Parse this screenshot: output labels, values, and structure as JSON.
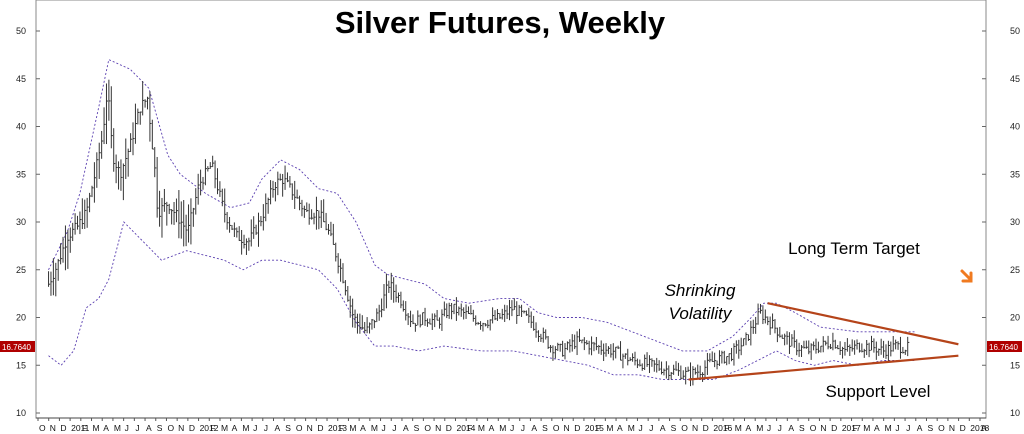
{
  "chart_data": {
    "type": "line",
    "title": "Silver Futures, Weekly",
    "ylim": [
      10,
      52
    ],
    "y_ticks": [
      10,
      15,
      20,
      25,
      30,
      35,
      40,
      45,
      50
    ],
    "last_price": "16.7640",
    "x_labels": [
      "O",
      "N",
      "D",
      "2011",
      "F",
      "M",
      "A",
      "M",
      "J",
      "J",
      "A",
      "S",
      "O",
      "N",
      "D",
      "2012",
      "F",
      "M",
      "A",
      "M",
      "J",
      "J",
      "A",
      "S",
      "O",
      "N",
      "D",
      "2013",
      "F",
      "M",
      "A",
      "M",
      "J",
      "J",
      "A",
      "S",
      "O",
      "N",
      "D",
      "2014",
      "F",
      "M",
      "A",
      "M",
      "J",
      "J",
      "A",
      "S",
      "O",
      "N",
      "D",
      "2015",
      "F",
      "M",
      "A",
      "M",
      "J",
      "J",
      "A",
      "S",
      "O",
      "N",
      "D",
      "2016",
      "F",
      "M",
      "A",
      "M",
      "J",
      "J",
      "A",
      "S",
      "O",
      "N",
      "D",
      "2017",
      "F",
      "M",
      "A",
      "M",
      "J",
      "J",
      "A",
      "S",
      "O",
      "N",
      "D",
      "2018",
      "A"
    ],
    "series": [
      {
        "name": "",
        "style": "price-bars",
        "x": [
          2010.85,
          2010.92,
          2011.0,
          2011.08,
          2011.15,
          2011.22,
          2011.28,
          2011.32,
          2011.36,
          2011.42,
          2011.5,
          2011.58,
          2011.64,
          2011.7,
          2011.72,
          2011.8,
          2011.88,
          2011.96,
          2012.05,
          2012.15,
          2012.25,
          2012.35,
          2012.45,
          2012.55,
          2012.65,
          2012.72,
          2012.8,
          2012.9,
          2013.0,
          2013.08,
          2013.18,
          2013.28,
          2013.38,
          2013.48,
          2013.56,
          2013.65,
          2013.75,
          2013.85,
          2013.95,
          2014.05,
          2014.15,
          2014.3,
          2014.45,
          2014.55,
          2014.7,
          2014.85,
          2014.95,
          2015.05,
          2015.2,
          2015.35,
          2015.5,
          2015.65,
          2015.8,
          2015.95,
          2016.05,
          2016.15,
          2016.28,
          2016.4,
          2016.52,
          2016.6,
          2016.7,
          2016.8,
          2016.9,
          2017.0,
          2017.1,
          2017.2,
          2017.3,
          2017.4,
          2017.5,
          2017.6,
          2017.7
        ],
        "y": [
          23.5,
          25.5,
          28.5,
          29.5,
          31,
          35,
          39,
          44,
          37,
          35,
          38,
          42,
          43,
          35,
          31,
          32,
          30.5,
          29,
          34,
          36,
          31,
          28.5,
          28,
          30.5,
          34,
          34.5,
          33,
          31,
          31,
          29,
          25,
          20,
          18.5,
          20.5,
          23.5,
          22,
          19.5,
          20,
          19.5,
          21,
          20.5,
          19.5,
          20,
          21,
          19.5,
          17,
          16.5,
          17.5,
          17,
          16.5,
          15.5,
          15,
          14.5,
          14,
          14.5,
          15.5,
          16,
          17.5,
          20.5,
          19.5,
          18,
          17,
          16.5,
          17,
          17.5,
          16.5,
          17,
          17,
          16.5,
          17,
          16.8
        ]
      },
      {
        "name": "",
        "style": "upper-band",
        "x": [
          2010.85,
          2011.0,
          2011.1,
          2011.25,
          2011.33,
          2011.5,
          2011.65,
          2011.8,
          2011.9,
          2012.1,
          2012.3,
          2012.45,
          2012.55,
          2012.7,
          2012.85,
          2013.0,
          2013.15,
          2013.3,
          2013.45,
          2013.55,
          2013.7,
          2013.85,
          2014.0,
          2014.2,
          2014.45,
          2014.6,
          2014.75,
          2014.9,
          2015.1,
          2015.3,
          2015.5,
          2015.7,
          2015.9,
          2016.1,
          2016.3,
          2016.45,
          2016.55,
          2016.65,
          2016.8,
          2017.0,
          2017.3,
          2017.6,
          2017.75
        ],
        "y": [
          25,
          29,
          33,
          42,
          47,
          46,
          44,
          37,
          35,
          33,
          31.5,
          32,
          34.5,
          36.5,
          35.5,
          33.5,
          33,
          30,
          25.5,
          24.5,
          24,
          23.5,
          22,
          21.5,
          22,
          22,
          20.5,
          20,
          20,
          19.5,
          18.5,
          17.5,
          16.5,
          16.5,
          18,
          20,
          21.5,
          21.5,
          20.5,
          19,
          18.5,
          18.5,
          18.5
        ]
      },
      {
        "name": "",
        "style": "lower-band",
        "x": [
          2010.85,
          2010.95,
          2011.05,
          2011.15,
          2011.25,
          2011.33,
          2011.45,
          2011.6,
          2011.75,
          2011.95,
          2012.1,
          2012.25,
          2012.4,
          2012.55,
          2012.7,
          2012.85,
          2013.0,
          2013.15,
          2013.3,
          2013.45,
          2013.6,
          2013.8,
          2014.0,
          2014.3,
          2014.55,
          2014.75,
          2014.95,
          2015.15,
          2015.35,
          2015.55,
          2015.75,
          2015.95,
          2016.15,
          2016.35,
          2016.5,
          2016.65,
          2016.8,
          2016.95,
          2017.1,
          2017.3,
          2017.5,
          2017.75
        ],
        "y": [
          16,
          15,
          16.5,
          21,
          22,
          24,
          30,
          28,
          26,
          27,
          26.5,
          26,
          25,
          26,
          26,
          25.5,
          25,
          23,
          19.5,
          17,
          17,
          16.5,
          17,
          16.5,
          16.5,
          16,
          15.5,
          15,
          14,
          14,
          13.5,
          13.5,
          13.5,
          14.5,
          15.5,
          16.5,
          15.5,
          15,
          15.5,
          15,
          15.5,
          15.5
        ]
      }
    ],
    "trendlines": [
      {
        "label": "",
        "from": [
          2016.58,
          21.5
        ],
        "to": [
          2018.1,
          17.2
        ]
      },
      {
        "label": "",
        "from": [
          2015.95,
          13.5
        ],
        "to": [
          2018.1,
          16.0
        ]
      }
    ],
    "annotations": {
      "shrinking": [
        "Shrinking",
        "Volatility"
      ],
      "target": "Long Term Target",
      "support": "Support Level"
    },
    "colors": {
      "trendline": "#b5441a",
      "band": "#5a3fb0",
      "bars": "#333333",
      "price_tag": "#b00000",
      "target_arrow": "#f07a20"
    }
  }
}
